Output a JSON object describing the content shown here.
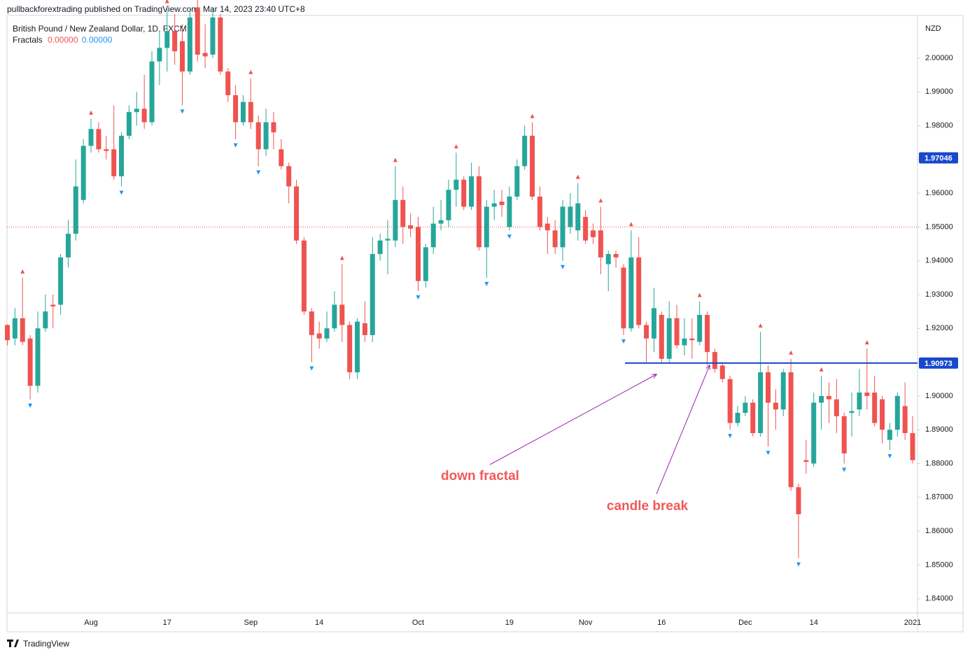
{
  "header": "pullbackforextrading published on TradingView.com, Mar 14, 2023 23:40 UTC+8",
  "footer": "TradingView",
  "chart_data": {
    "type": "candlestick",
    "title": "British Pound / New Zealand Dollar, 1D, FXCM",
    "indicator": {
      "name": "Fractals",
      "up_label": "0.00000",
      "down_label": "0.00000",
      "up_color": "#ef5350",
      "down_color": "#2196f3"
    },
    "y_axis_label": "NZD",
    "up_color": "#26a69a",
    "down_color": "#ef5350",
    "categories": [
      null,
      null,
      null,
      null,
      null,
      null,
      null,
      null,
      null,
      null,
      null,
      "Aug",
      null,
      null,
      null,
      null,
      null,
      null,
      null,
      null,
      null,
      "17",
      null,
      null,
      null,
      null,
      null,
      null,
      null,
      null,
      null,
      null,
      "Sep",
      null,
      null,
      null,
      null,
      null,
      null,
      null,
      null,
      "14",
      null,
      null,
      null,
      null,
      null,
      null,
      null,
      null,
      null,
      null,
      null,
      null,
      "Oct",
      null,
      null,
      null,
      null,
      null,
      null,
      null,
      null,
      null,
      null,
      null,
      "19",
      null,
      null,
      null,
      null,
      null,
      null,
      null,
      null,
      null,
      "Nov",
      null,
      null,
      null,
      null,
      null,
      null,
      null,
      null,
      null,
      "16",
      null,
      null,
      null,
      null,
      null,
      null,
      null,
      null,
      null,
      null,
      "Dec",
      null,
      null,
      null,
      null,
      null,
      null,
      null,
      null,
      "14",
      null,
      null,
      null,
      null,
      null,
      null,
      null,
      null,
      null,
      null,
      null,
      null,
      "2021"
    ],
    "open": [
      1.921,
      1.917,
      1.923,
      1.917,
      1.903,
      1.92,
      1.927,
      1.927,
      1.941,
      1.948,
      1.958,
      1.974,
      1.979,
      1.973,
      1.973,
      1.965,
      1.977,
      1.984,
      1.985,
      1.981,
      1.999,
      2.003,
      2.008,
      2.005,
      1.996,
      2.015,
      2.0015,
      2.001,
      2.012,
      1.996,
      1.989,
      1.981,
      1.987,
      1.981,
      1.973,
      1.981,
      1.973,
      1.968,
      1.962,
      1.946,
      1.925,
      1.9185,
      1.917,
      1.92,
      1.927,
      1.921,
      1.907,
      1.9215,
      1.918,
      1.942,
      1.946,
      1.946,
      1.958,
      1.9505,
      1.95,
      1.934,
      1.944,
      1.951,
      1.952,
      1.961,
      1.964,
      1.956,
      1.965,
      1.944,
      1.956,
      1.9575,
      1.95,
      1.959,
      1.968,
      1.977,
      1.959,
      1.951,
      1.949,
      1.944,
      1.95,
      1.949,
      1.953,
      1.949,
      1.949,
      1.939,
      1.942,
      1.938,
      1.92,
      1.941,
      1.921,
      1.917,
      1.924,
      1.911,
      1.923,
      1.915,
      1.917,
      1.916,
      1.924,
      1.913,
      1.909,
      1.905,
      1.892,
      1.895,
      1.898,
      1.889,
      1.907,
      1.898,
      1.896,
      1.907,
      1.873,
      1.881,
      1.88,
      1.898,
      1.9,
      1.899,
      1.894,
      1.895,
      1.896,
      1.901,
      1.901,
      1.899,
      1.887,
      1.89,
      1.897,
      1.889
    ],
    "close": [
      1.9165,
      1.923,
      1.916,
      1.903,
      1.92,
      1.925,
      1.9265,
      1.941,
      1.948,
      1.962,
      1.974,
      1.979,
      1.973,
      1.9725,
      1.965,
      1.977,
      1.984,
      1.985,
      1.981,
      1.999,
      2.003,
      2.008,
      2.002,
      1.996,
      2.012,
      2.001,
      2.0005,
      2.012,
      1.996,
      1.989,
      1.981,
      1.987,
      1.981,
      1.973,
      1.981,
      1.978,
      1.968,
      1.962,
      1.946,
      1.925,
      1.918,
      1.917,
      1.92,
      1.927,
      1.921,
      1.907,
      1.922,
      1.918,
      1.942,
      1.946,
      1.9465,
      1.958,
      1.95,
      1.9495,
      1.934,
      1.944,
      1.951,
      1.952,
      1.961,
      1.964,
      1.956,
      1.965,
      1.944,
      1.956,
      1.957,
      1.9565,
      1.959,
      1.968,
      1.977,
      1.959,
      1.95,
      1.949,
      1.944,
      1.956,
      1.956,
      1.957,
      1.946,
      1.947,
      1.941,
      1.942,
      1.941,
      1.92,
      1.941,
      1.921,
      1.917,
      1.926,
      1.911,
      1.923,
      1.915,
      1.917,
      1.9165,
      1.924,
      1.913,
      1.908,
      1.905,
      1.892,
      1.895,
      1.898,
      1.889,
      1.907,
      1.898,
      1.896,
      1.907,
      1.873,
      1.865,
      1.8805,
      1.898,
      1.9,
      1.899,
      1.894,
      1.883,
      1.8955,
      1.901,
      1.9,
      1.892,
      1.89,
      1.89,
      1.9,
      1.889,
      1.881
    ],
    "high": [
      1.9212,
      1.926,
      1.935,
      1.918,
      1.925,
      1.93,
      1.93,
      1.942,
      1.952,
      1.97,
      1.976,
      1.982,
      1.981,
      1.977,
      1.986,
      1.978,
      1.986,
      1.99,
      1.995,
      2.002,
      2.008,
      2.015,
      2.013,
      2.01,
      2.015,
      2.019,
      2.01,
      2.015,
      2.013,
      1.997,
      1.992,
      1.989,
      1.994,
      1.983,
      1.985,
      1.984,
      1.976,
      1.969,
      1.964,
      1.947,
      1.926,
      1.922,
      1.925,
      1.931,
      1.939,
      1.922,
      1.923,
      1.928,
      1.947,
      1.948,
      1.952,
      1.968,
      1.962,
      1.954,
      1.953,
      1.945,
      1.956,
      1.958,
      1.964,
      1.972,
      1.965,
      1.969,
      1.968,
      1.958,
      1.961,
      1.961,
      1.962,
      1.97,
      1.98,
      1.981,
      1.962,
      1.953,
      1.952,
      1.958,
      1.96,
      1.963,
      1.955,
      1.951,
      1.956,
      1.943,
      1.943,
      1.939,
      1.949,
      1.947,
      1.922,
      1.932,
      1.925,
      1.928,
      1.927,
      1.923,
      1.923,
      1.928,
      1.925,
      1.914,
      1.91,
      1.906,
      1.897,
      1.9,
      1.899,
      1.919,
      1.909,
      1.902,
      1.908,
      1.911,
      1.874,
      1.887,
      1.901,
      1.906,
      1.904,
      1.905,
      1.895,
      1.901,
      1.908,
      1.914,
      1.906,
      1.9,
      1.892,
      1.901,
      1.904,
      1.894
    ],
    "low": [
      1.915,
      1.915,
      1.915,
      1.899,
      1.901,
      1.919,
      1.92,
      1.924,
      1.938,
      1.946,
      1.957,
      1.972,
      1.972,
      1.97,
      1.964,
      1.962,
      1.976,
      1.98,
      1.979,
      1.98,
      1.992,
      1.996,
      1.998,
      1.986,
      1.995,
      1.999,
      1.997,
      2.0,
      1.995,
      1.987,
      1.976,
      1.98,
      1.979,
      1.968,
      1.971,
      1.973,
      1.967,
      1.957,
      1.945,
      1.924,
      1.91,
      1.914,
      1.916,
      1.919,
      1.916,
      1.905,
      1.905,
      1.916,
      1.916,
      1.94,
      1.936,
      1.944,
      1.945,
      1.947,
      1.931,
      1.932,
      1.942,
      1.949,
      1.95,
      1.956,
      1.955,
      1.955,
      1.943,
      1.935,
      1.952,
      1.953,
      1.949,
      1.958,
      1.967,
      1.958,
      1.949,
      1.942,
      1.942,
      1.94,
      1.948,
      1.946,
      1.945,
      1.945,
      1.936,
      1.931,
      1.938,
      1.918,
      1.919,
      1.92,
      1.91,
      1.913,
      1.91,
      1.91,
      1.914,
      1.912,
      1.911,
      1.915,
      1.909,
      1.907,
      1.904,
      1.89,
      1.891,
      1.894,
      1.888,
      1.888,
      1.885,
      1.89,
      1.894,
      1.872,
      1.852,
      1.877,
      1.879,
      1.89,
      1.892,
      1.889,
      1.88,
      1.888,
      1.894,
      1.896,
      1.891,
      1.886,
      1.884,
      1.888,
      1.887,
      1.88
    ],
    "ylim": [
      1.836,
      2.0151
    ],
    "yticks": [
      {
        "value": 1.84,
        "label": "1.84000"
      },
      {
        "value": 1.85,
        "label": "1.85000"
      },
      {
        "value": 1.86,
        "label": "1.86000"
      },
      {
        "value": 1.87,
        "label": "1.87000"
      },
      {
        "value": 1.88,
        "label": "1.88000"
      },
      {
        "value": 1.89,
        "label": "1.89000"
      },
      {
        "value": 1.9,
        "label": "1.90000"
      },
      {
        "value": 1.91,
        "label": "1.91000"
      },
      {
        "value": 1.92,
        "label": "1.92000"
      },
      {
        "value": 1.93,
        "label": "1.93000"
      },
      {
        "value": 1.94,
        "label": "1.94000"
      },
      {
        "value": 1.95,
        "label": "1.95000"
      },
      {
        "value": 1.96,
        "label": "1.96000"
      },
      {
        "value": 1.97,
        "label": "1.97000"
      },
      {
        "value": 1.98,
        "label": "1.98000"
      },
      {
        "value": 1.99,
        "label": "1.99000"
      },
      {
        "value": 2.0,
        "label": "2.00000"
      }
    ],
    "price_line": 1.95,
    "price_labels": [
      {
        "value": 1.97046,
        "label": "1.97046"
      },
      {
        "value": 1.90973,
        "label": "1.90973"
      }
    ],
    "level_color": "#1848cc",
    "annotations": [
      {
        "text": "down fractal"
      },
      {
        "text": "candle break"
      }
    ]
  }
}
